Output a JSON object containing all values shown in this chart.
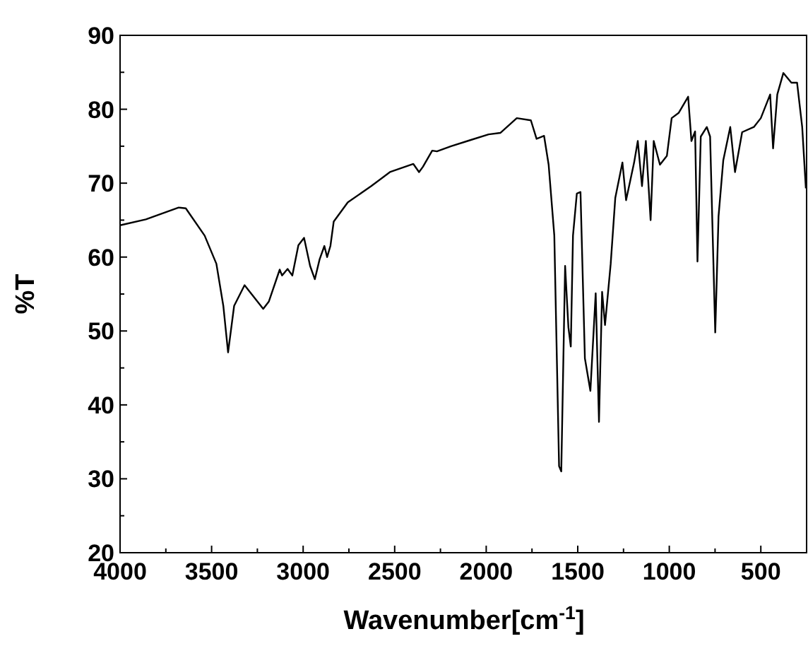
{
  "chart_data": {
    "type": "line",
    "xlabel": "Wavenumber[cm$^{-1}$]",
    "ylabel": "%T",
    "xlim": [
      4000,
      250
    ],
    "ylim": [
      20,
      90
    ],
    "xticks": [
      4000,
      {
        "value": 3750,
        "label": null
      },
      3500,
      {
        "value": 3250,
        "label": null
      },
      3000,
      {
        "value": 2750,
        "label": null
      },
      2500,
      {
        "value": 2250,
        "label": null
      },
      2000,
      {
        "value": 1750,
        "label": null
      },
      1500,
      {
        "value": 1250,
        "label": null
      },
      1000,
      {
        "value": 750,
        "label": null
      },
      500
    ],
    "yticks": [
      20,
      {
        "value": 25,
        "label": null
      },
      30,
      {
        "value": 35,
        "label": null
      },
      40,
      {
        "value": 45,
        "label": null
      },
      50,
      {
        "value": 55,
        "label": null
      },
      60,
      {
        "value": 65,
        "label": null
      },
      70,
      {
        "value": 75,
        "label": null
      },
      80,
      {
        "value": 85,
        "label": null
      },
      90
    ],
    "line_style": "solid",
    "series": [
      {
        "color": "#000000",
        "x": [
          4000,
          3859,
          3680,
          3641,
          3538,
          3474,
          3436,
          3410,
          3377,
          3320,
          3218,
          3187,
          3128,
          3115,
          3085,
          3059,
          3026,
          2995,
          2962,
          2936,
          2910,
          2884,
          2869,
          2851,
          2833,
          2756,
          2628,
          2526,
          2398,
          2367,
          2346,
          2295,
          2269,
          2192,
          2090,
          1987,
          1923,
          1833,
          1756,
          1725,
          1684,
          1659,
          1628,
          1602,
          1590,
          1569,
          1551,
          1538,
          1526,
          1505,
          1485,
          1461,
          1431,
          1402,
          1384,
          1367,
          1351,
          1320,
          1295,
          1256,
          1236,
          1192,
          1172,
          1149,
          1128,
          1102,
          1085,
          1051,
          1013,
          987,
          949,
          897,
          879,
          859,
          846,
          828,
          795,
          777,
          749,
          731,
          705,
          667,
          641,
          602,
          538,
          500,
          449,
          433,
          410,
          377,
          333,
          302,
          274,
          254
        ],
        "values": [
          64.3,
          65.1,
          66.7,
          66.6,
          62.9,
          59.1,
          53.4,
          47.1,
          53.4,
          56.2,
          53.0,
          54.0,
          58.3,
          57.5,
          58.4,
          57.5,
          61.6,
          62.6,
          58.8,
          57.0,
          59.7,
          61.5,
          60.0,
          61.5,
          64.8,
          67.4,
          69.6,
          71.5,
          72.6,
          71.5,
          72.2,
          74.4,
          74.3,
          75.0,
          75.8,
          76.6,
          76.8,
          78.8,
          78.5,
          76.0,
          76.4,
          72.5,
          62.9,
          31.7,
          31.0,
          58.8,
          50.5,
          47.9,
          62.9,
          68.6,
          68.8,
          46.3,
          41.9,
          55.1,
          37.7,
          55.3,
          50.8,
          59.1,
          68.0,
          72.8,
          67.7,
          72.8,
          75.7,
          69.6,
          75.7,
          65.0,
          75.7,
          72.5,
          73.7,
          78.8,
          79.5,
          81.7,
          75.7,
          77.0,
          59.4,
          76.3,
          77.6,
          76.3,
          49.8,
          65.5,
          73.1,
          77.6,
          71.5,
          76.9,
          77.6,
          78.8,
          82.0,
          74.7,
          82.0,
          84.9,
          83.6,
          83.6,
          77.6,
          69.3
        ]
      }
    ]
  }
}
